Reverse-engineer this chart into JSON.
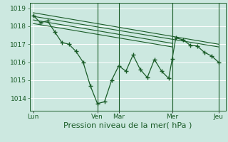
{
  "bg_color": "#cce8e0",
  "grid_color": "#b0d8d0",
  "line_color": "#1a5c28",
  "ylim": [
    1013.3,
    1019.3
  ],
  "yticks": [
    1014,
    1015,
    1016,
    1017,
    1018,
    1019
  ],
  "xlabel": "Pression niveau de la mer( hPa )",
  "xlabel_fontsize": 8,
  "tick_fontsize": 6.5,
  "xtick_labels": [
    "Lun",
    "Ven",
    "Mar",
    "Mer",
    "Jeu"
  ],
  "xtick_positions": [
    0,
    9,
    12,
    19.5,
    26
  ],
  "xlim": [
    -0.5,
    27
  ],
  "series1": {
    "x": [
      0,
      1,
      2,
      3,
      4,
      5,
      6,
      7,
      8,
      9,
      10,
      11,
      12,
      13,
      14,
      15,
      16,
      17,
      18,
      19,
      19.5,
      20,
      21,
      22,
      23,
      24,
      25,
      26
    ],
    "y": [
      1018.6,
      1018.2,
      1018.3,
      1017.7,
      1017.1,
      1017.0,
      1016.6,
      1016.0,
      1014.7,
      1013.7,
      1013.8,
      1015.0,
      1015.8,
      1015.5,
      1016.4,
      1015.6,
      1015.15,
      1016.15,
      1015.5,
      1015.1,
      1016.2,
      1017.35,
      1017.25,
      1016.95,
      1016.9,
      1016.55,
      1016.35,
      1016.0
    ]
  },
  "trend_lines": [
    {
      "x": [
        0,
        26
      ],
      "y": [
        1018.75,
        1017.0
      ]
    },
    {
      "x": [
        0,
        26
      ],
      "y": [
        1018.55,
        1016.85
      ]
    },
    {
      "x": [
        0,
        19.5
      ],
      "y": [
        1018.35,
        1017.05
      ]
    },
    {
      "x": [
        0,
        19.5
      ],
      "y": [
        1018.15,
        1016.85
      ]
    }
  ],
  "vline_positions": [
    9,
    12,
    19.5,
    26
  ]
}
